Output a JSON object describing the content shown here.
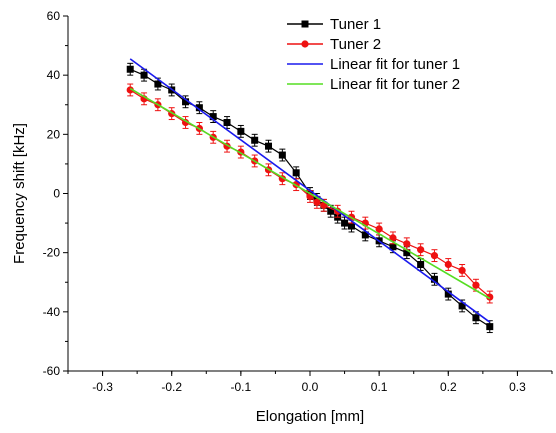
{
  "chart_data": {
    "type": "scatter",
    "title": "",
    "xlabel": "Elongation [mm]",
    "ylabel": "Frequency shift [kHz]",
    "xlim": [
      -0.35,
      0.35
    ],
    "ylim": [
      -60,
      60
    ],
    "xticks": [
      -0.3,
      -0.2,
      -0.1,
      0.0,
      0.1,
      0.2,
      0.3
    ],
    "xtick_labels": [
      "-0.3",
      "-0.2",
      "-0.1",
      "0.0",
      "0.1",
      "0.2",
      "0.3"
    ],
    "yticks": [
      -60,
      -40,
      -20,
      0,
      20,
      40,
      60
    ],
    "ytick_labels": [
      "-60",
      "-40",
      "-20",
      "0",
      "20",
      "40",
      "60"
    ],
    "legend_position": "top-right",
    "grid": false,
    "series": [
      {
        "name": "Tuner 1",
        "kind": "line+markers",
        "marker": "square",
        "color": "#000000",
        "x": [
          -0.26,
          -0.24,
          -0.22,
          -0.2,
          -0.18,
          -0.16,
          -0.14,
          -0.12,
          -0.1,
          -0.08,
          -0.06,
          -0.04,
          -0.02,
          0.0,
          0.01,
          0.02,
          0.03,
          0.04,
          0.05,
          0.06,
          0.08,
          0.1,
          0.12,
          0.14,
          0.16,
          0.18,
          0.2,
          0.22,
          0.24,
          0.26
        ],
        "y": [
          42,
          40,
          37,
          35,
          31,
          29,
          26,
          24,
          21,
          18,
          16,
          13,
          7,
          0,
          -2,
          -4,
          -6,
          -8,
          -10,
          -11,
          -14,
          -16,
          -18,
          -20,
          -24,
          -29,
          -34,
          -38,
          -42,
          -45
        ],
        "error": 2
      },
      {
        "name": "Tuner 2",
        "kind": "line+markers",
        "marker": "circle",
        "color": "#ee1111",
        "x": [
          -0.26,
          -0.24,
          -0.22,
          -0.2,
          -0.18,
          -0.16,
          -0.14,
          -0.12,
          -0.1,
          -0.08,
          -0.06,
          -0.04,
          -0.02,
          0.0,
          0.01,
          0.02,
          0.04,
          0.06,
          0.08,
          0.1,
          0.12,
          0.14,
          0.16,
          0.18,
          0.2,
          0.22,
          0.24,
          0.26
        ],
        "y": [
          35,
          32,
          30,
          27,
          24,
          22,
          19,
          16,
          14,
          11,
          8,
          5,
          3,
          -1,
          -3,
          -4,
          -6,
          -8,
          -10,
          -12,
          -15,
          -17,
          -19,
          -21,
          -24,
          -26,
          -31,
          -35
        ],
        "error": 2
      },
      {
        "name": "Linear fit for tuner 1",
        "kind": "line",
        "color": "#1a1aee",
        "x": [
          -0.26,
          0.26
        ],
        "y": [
          45.5,
          -43.5
        ]
      },
      {
        "name": "Linear fit for tuner 2",
        "kind": "line",
        "color": "#55dd22",
        "x": [
          -0.26,
          0.26
        ],
        "y": [
          35.5,
          -35.5
        ]
      }
    ]
  }
}
